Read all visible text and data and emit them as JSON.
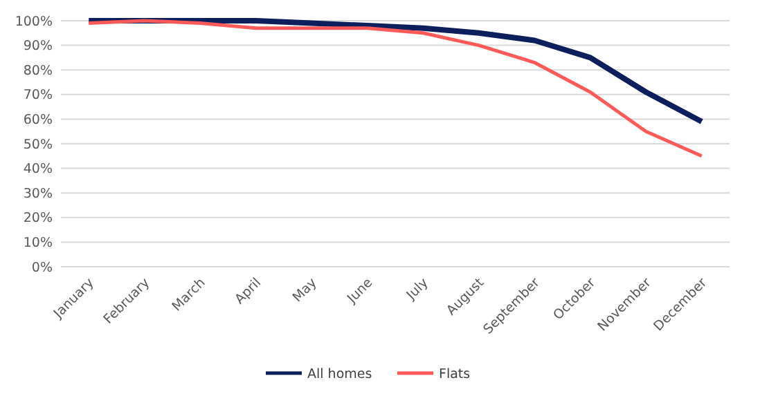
{
  "chart_data": {
    "type": "line",
    "categories": [
      "January",
      "February",
      "March",
      "April",
      "May",
      "June",
      "July",
      "August",
      "September",
      "October",
      "November",
      "December"
    ],
    "series": [
      {
        "name": "All homes",
        "color": "#0c1f5c",
        "values": [
          100,
          100,
          100,
          100,
          99,
          98,
          97,
          95,
          92,
          85,
          71,
          59
        ]
      },
      {
        "name": "Flats",
        "color": "#ff5a5a",
        "values": [
          99,
          100,
          99,
          97,
          97,
          97,
          95,
          90,
          83,
          71,
          55,
          45
        ]
      }
    ],
    "ylim": [
      0,
      100
    ],
    "yticks": [
      {
        "value": 0,
        "label": "0%"
      },
      {
        "value": 10,
        "label": "10%"
      },
      {
        "value": 20,
        "label": "20%"
      },
      {
        "value": 30,
        "label": "30%"
      },
      {
        "value": 40,
        "label": "40%"
      },
      {
        "value": 50,
        "label": "50%"
      },
      {
        "value": 60,
        "label": "60%"
      },
      {
        "value": 70,
        "label": "70%"
      },
      {
        "value": 80,
        "label": "80%"
      },
      {
        "value": 90,
        "label": "90%"
      },
      {
        "value": 100,
        "label": "100%"
      }
    ],
    "grid": "y",
    "legend": "bottom",
    "marker": "none",
    "line_style": "solid"
  }
}
